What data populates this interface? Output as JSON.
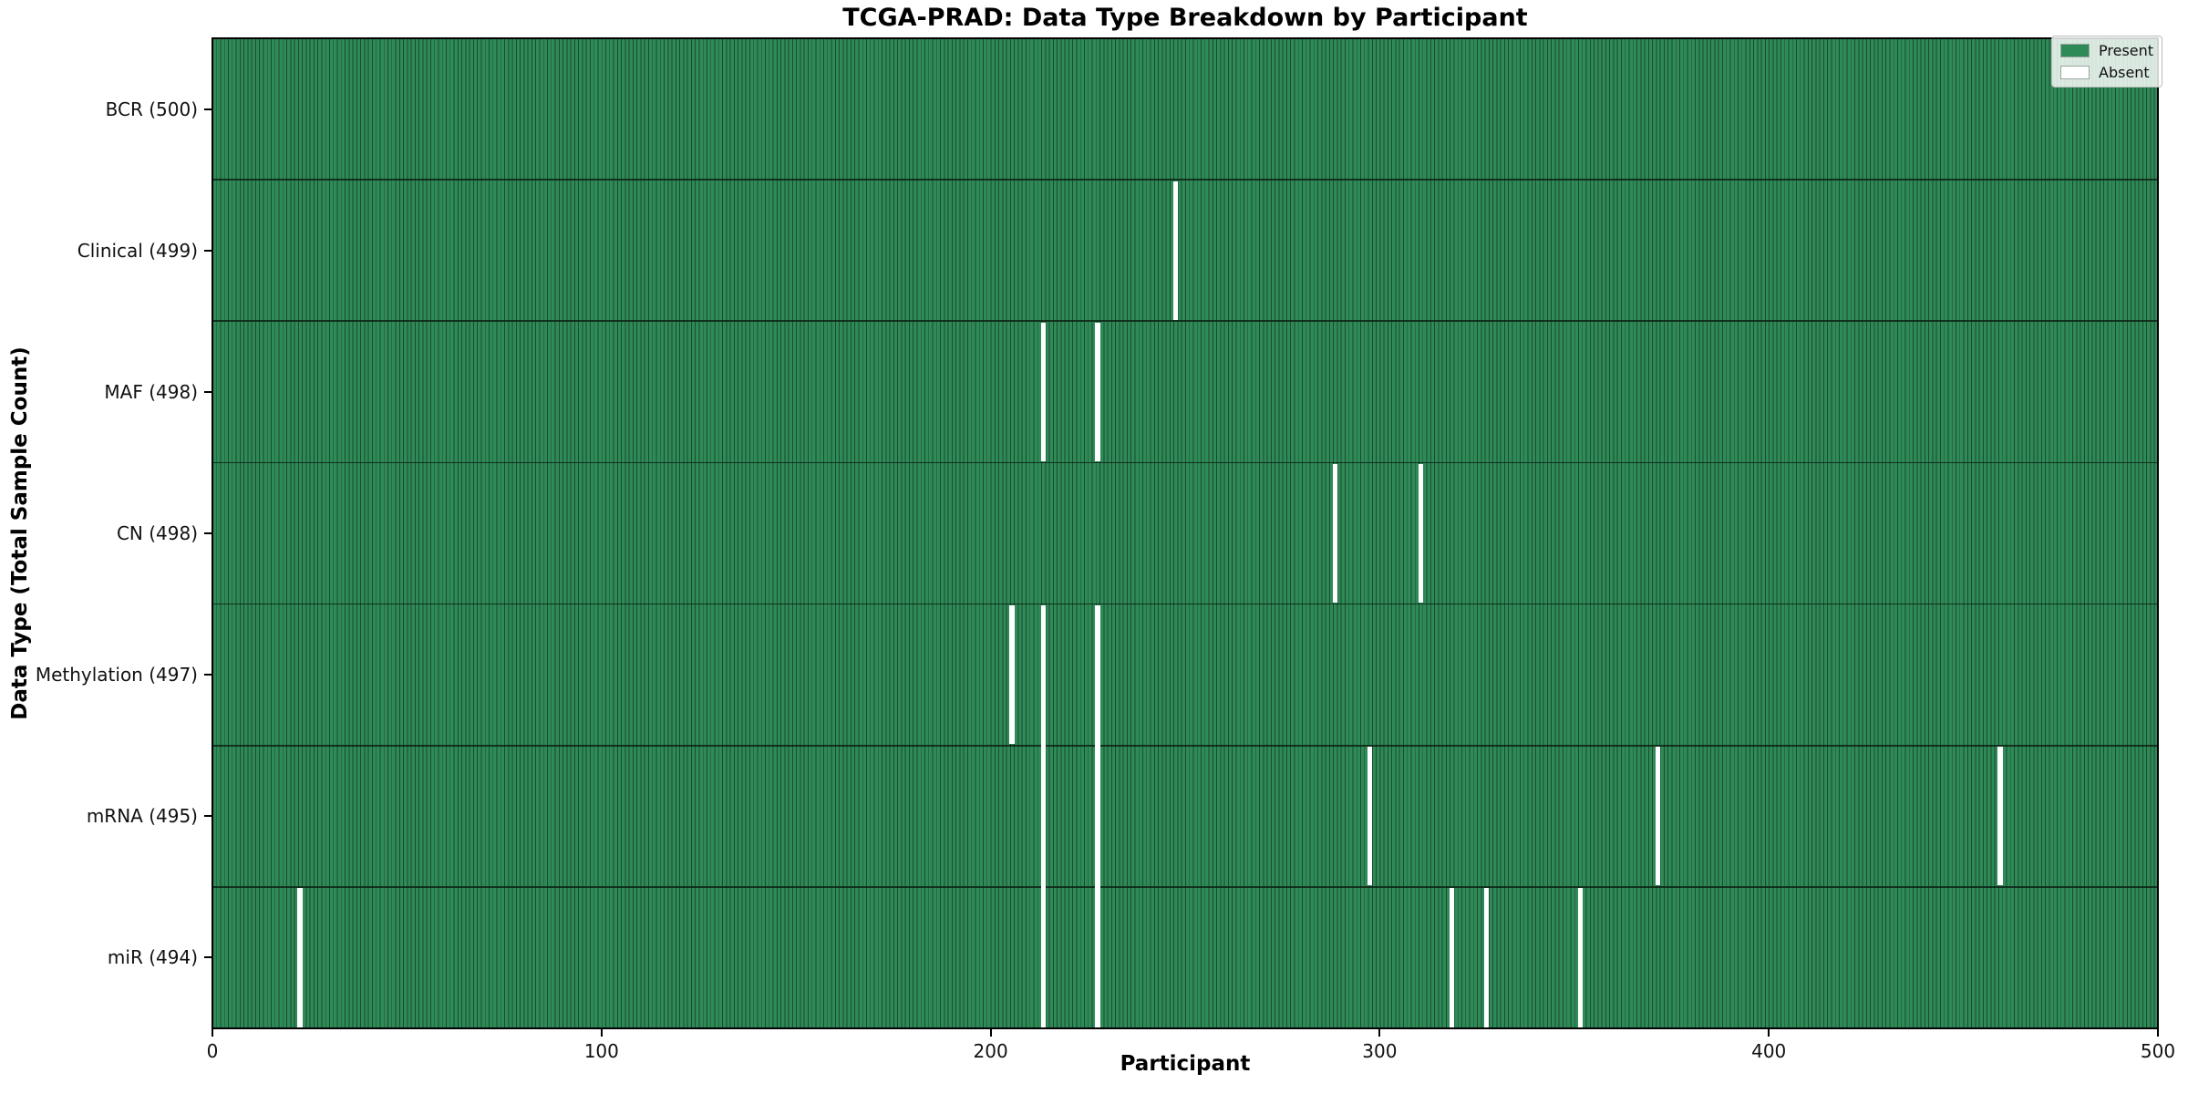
{
  "chart_data": {
    "type": "heatmap",
    "title": "TCGA-PRAD: Data Type Breakdown by Participant",
    "xlabel": "Participant",
    "ylabel": "Data Type (Total Sample Count)",
    "x_range": [
      0,
      500
    ],
    "x_ticks": [
      0,
      100,
      200,
      300,
      400,
      500
    ],
    "n_participants": 500,
    "grid": false,
    "rows": [
      {
        "data_type": "BCR",
        "label": "BCR (500)",
        "present_count": 500,
        "absent_participants": []
      },
      {
        "data_type": "Clinical",
        "label": "Clinical (499)",
        "present_count": 499,
        "absent_participants": [
          247
        ]
      },
      {
        "data_type": "MAF",
        "label": "MAF (498)",
        "present_count": 498,
        "absent_participants": [
          213,
          227
        ]
      },
      {
        "data_type": "CN",
        "label": "CN (498)",
        "present_count": 498,
        "absent_participants": [
          288,
          310
        ]
      },
      {
        "data_type": "Methylation",
        "label": "Methylation (497)",
        "present_count": 497,
        "absent_participants": [
          205,
          213,
          227
        ]
      },
      {
        "data_type": "mRNA",
        "label": "mRNA (495)",
        "present_count": 495,
        "absent_participants": [
          213,
          227,
          297,
          371,
          459
        ]
      },
      {
        "data_type": "miR",
        "label": "miR (494)",
        "present_count": 494,
        "absent_participants": [
          22,
          213,
          227,
          318,
          327,
          351
        ]
      }
    ],
    "legend": {
      "position": "upper right",
      "entries": [
        {
          "label": "Present",
          "color": "#2e8b57"
        },
        {
          "label": "Absent",
          "color": "#ffffff"
        }
      ]
    },
    "colors": {
      "present": "#2e8b57",
      "absent": "#ffffff",
      "bar_edge": "#1c4a31",
      "spine": "#000000"
    }
  }
}
